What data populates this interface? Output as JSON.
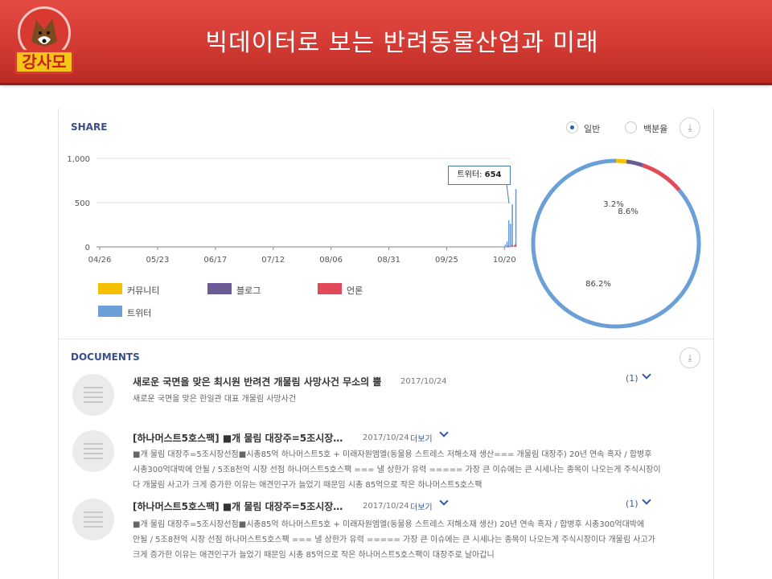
{
  "header": {
    "title": "빅데이터로 보는 반려동물산업과 미래",
    "logo_text": "강사모"
  },
  "share": {
    "title": "SHARE",
    "radio_general": "일반",
    "radio_percent": "백분율",
    "tooltip_label": "트위터",
    "tooltip_value": "654",
    "legend": [
      {
        "label": "커뮤니티",
        "color": "#f5c000"
      },
      {
        "label": "블로그",
        "color": "#6b5b95"
      },
      {
        "label": "언론",
        "color": "#e24a5a"
      },
      {
        "label": "트위터",
        "color": "#6a9fd8"
      }
    ]
  },
  "chart_data": [
    {
      "type": "bar",
      "title": "",
      "y_ticks": [
        "1,000",
        "500",
        "0"
      ],
      "ylim": [
        0,
        1000
      ],
      "x_ticks": [
        "04/26",
        "05/23",
        "06/17",
        "07/12",
        "08/06",
        "08/31",
        "09/25",
        "10/20"
      ],
      "series": [
        {
          "name": "트위터",
          "x": [
            "10/17",
            "10/18",
            "10/19",
            "10/20",
            "10/21",
            "10/22",
            "10/23",
            "10/24"
          ],
          "values": [
            5,
            25,
            60,
            300,
            260,
            480,
            20,
            654
          ]
        },
        {
          "name": "언론",
          "x": [
            "10/20",
            "10/22",
            "10/24"
          ],
          "values": [
            15,
            20,
            30
          ]
        }
      ]
    },
    {
      "type": "pie",
      "labels": [
        "커뮤니티",
        "블로그",
        "언론",
        "트위터"
      ],
      "values": [
        2.0,
        3.2,
        8.6,
        86.2
      ],
      "data_labels": [
        "",
        "3.2%",
        "8.6%",
        "86.2%"
      ],
      "colors": [
        "#f5c000",
        "#6b5b95",
        "#e24a5a",
        "#6a9fd8"
      ]
    }
  ],
  "documents": {
    "title": "DOCUMENTS",
    "items": [
      {
        "title": "새로운 국면을 맞은 최시원 반려견 개물림 사망사건   무소의 뿔",
        "date": "2017/10/24",
        "count": "(1)",
        "more": "",
        "body": [
          "새로운 국면을 맞은 한일관 대표 개물림 사망사건"
        ]
      },
      {
        "title": "[하나머스트5호스팩] ■개 물림 대장주=5조시장…",
        "date": "2017/10/24",
        "count": "",
        "more": "더보기",
        "body": [
          "■개 물림 대장주=5조시장선점■시총85억 하나머스트5호 + 미래자원엠엘(동물용 스트레스 저해소재 생산=== 개물림 대장주) 20년 연속 흑자 / 합병후",
          "시총300억대박에 안될 / 5조8천억 시장 선점 하나머스트5호스팩 === 낼 상한가 유력 ===== 가장 큰 이슈에는 큰 시세나는 종목이 나오는게 주식시장이",
          "다 개물림 사고가 크게 증가한 이유는 애견인구가 늘었기 때문임 시총 85억으로 작은 하나머스트5호스팩"
        ]
      },
      {
        "title": "[하나머스트5호스팩] ■개 물림 대장주=5조시장…",
        "date": "2017/10/24",
        "count": "(1)",
        "more": "더보기",
        "body": [
          "■개 물림 대장주=5조시장선점■시총85억 하나머스트5호 + 미래자원엠엘(동물용 스트레스 저해소재 생산) 20년 연속 흑자 / 합병후 시총300억대박에",
          "안될 / 5조8천억 시장 선점 하나머스트5호스팩 === 낼 상한가 유력 ===== 가장 큰 이슈에는 큰 시세나는 종목이 나오는게 주식시장이다 개물림 사고가",
          "크게 증가한 이유는 애견인구가 늘었기 때문임 시총 85억으로 작은 하나머스트5호스팩이 대장주로 날아갑니"
        ]
      }
    ]
  }
}
